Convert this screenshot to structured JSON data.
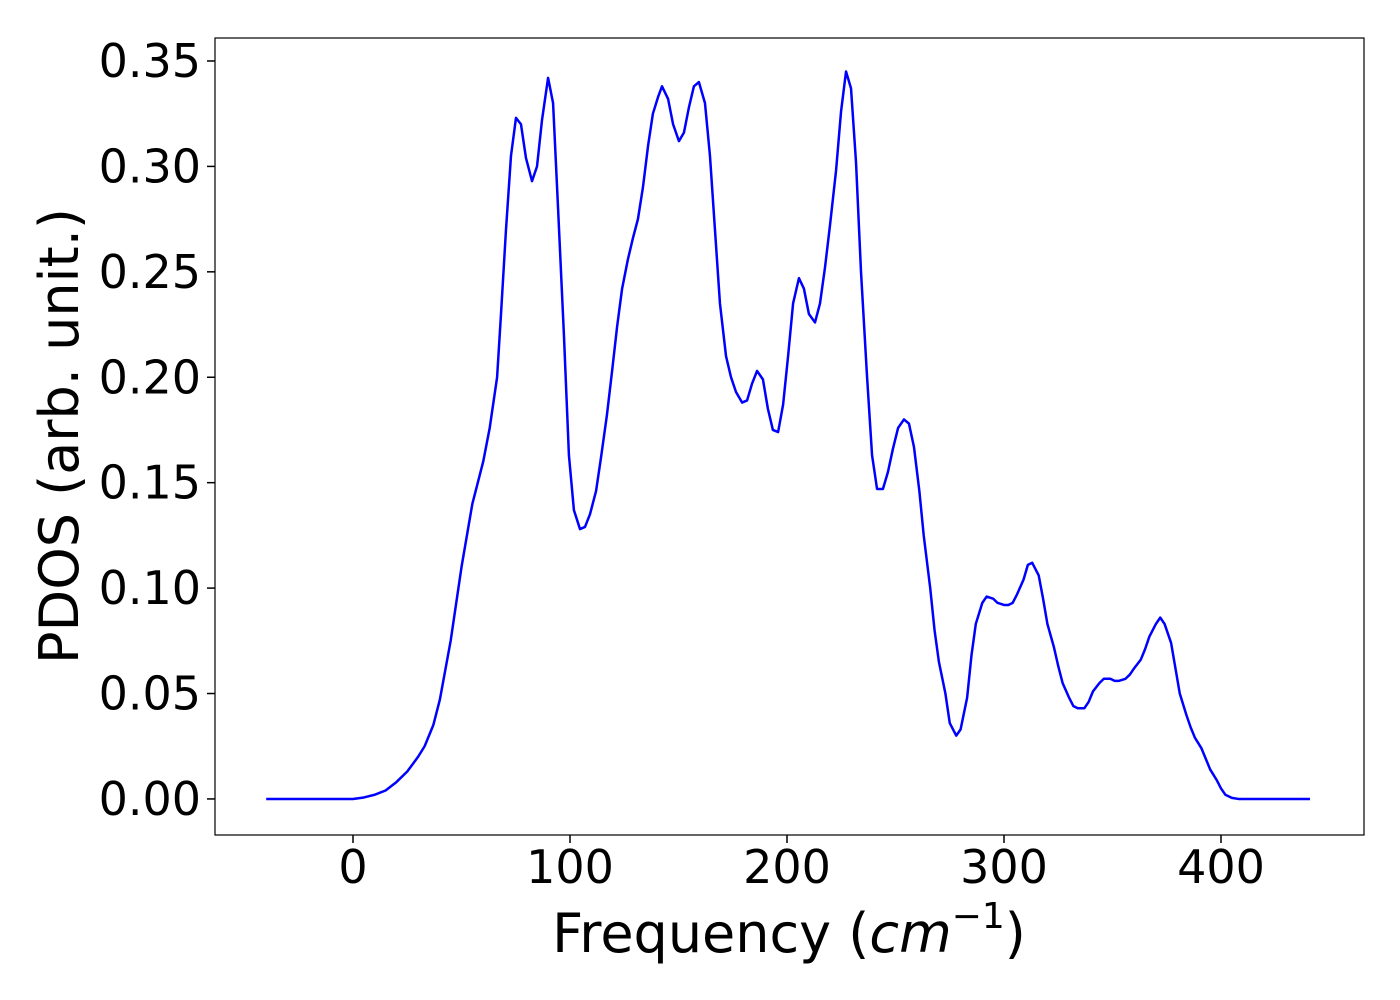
{
  "chart_data": {
    "type": "line",
    "xlabel": [
      "Frequency (",
      "cm",
      "−1",
      ")"
    ],
    "ylabel": "PDOS (arb. unit.)",
    "x": [
      -40,
      0,
      5,
      10,
      15,
      20,
      25,
      30,
      33,
      37,
      40,
      45,
      50,
      55,
      60,
      63,
      66.4,
      68.2,
      70.5,
      72.8,
      75.1,
      77.4,
      79.7,
      82.5,
      84.8,
      87.1,
      89.9,
      92.2,
      94.5,
      97.2,
      99.5,
      101.8,
      104.6,
      106.9,
      109.2,
      112,
      114.3,
      117,
      119.4,
      121.7,
      124,
      126.7,
      129,
      131.3,
      133.6,
      136,
      138.2,
      140.6,
      142.4,
      145.2,
      147.5,
      150.2,
      152.5,
      154.8,
      157.1,
      159.4,
      162.2,
      164.5,
      166.8,
      169.1,
      171.9,
      174.2,
      176.5,
      179.3,
      181.6,
      183.9,
      186.2,
      188.9,
      191.2,
      193.5,
      195.9,
      198.2,
      200.5,
      202.8,
      205.5,
      207.8,
      210.1,
      212.9,
      215.2,
      217.5,
      219.8,
      222.6,
      224.9,
      227.2,
      229.5,
      231.8,
      234.1,
      236.9,
      239.2,
      241.5,
      244.2,
      246.5,
      248.8,
      251.2,
      253.9,
      256.2,
      258.5,
      261,
      263,
      266,
      268,
      270,
      273,
      275,
      278,
      280,
      283,
      285,
      287,
      290,
      292,
      295,
      297,
      300,
      302,
      304,
      306,
      309,
      311,
      313,
      316,
      318,
      320,
      323,
      325,
      327,
      330,
      332,
      334,
      337,
      339,
      341,
      344,
      346,
      349,
      351,
      353,
      356,
      358,
      360,
      363,
      365,
      367,
      370,
      372,
      374,
      377,
      379,
      381,
      384,
      386,
      388,
      391,
      393,
      395,
      398,
      400,
      402,
      405,
      408,
      420,
      441
    ],
    "series": [
      {
        "name": "PDOS",
        "color": "#0000ff",
        "values": [
          0,
          0,
          0.0007,
          0.002,
          0.004,
          0.008,
          0.013,
          0.02,
          0.025,
          0.035,
          0.047,
          0.075,
          0.11,
          0.14,
          0.16,
          0.176,
          0.2,
          0.23,
          0.27,
          0.305,
          0.323,
          0.32,
          0.304,
          0.293,
          0.3,
          0.322,
          0.342,
          0.33,
          0.28,
          0.22,
          0.163,
          0.137,
          0.128,
          0.129,
          0.135,
          0.146,
          0.162,
          0.182,
          0.203,
          0.224,
          0.242,
          0.256,
          0.266,
          0.275,
          0.29,
          0.31,
          0.325,
          0.333,
          0.338,
          0.332,
          0.32,
          0.312,
          0.316,
          0.328,
          0.338,
          0.34,
          0.33,
          0.305,
          0.27,
          0.235,
          0.21,
          0.2,
          0.193,
          0.188,
          0.189,
          0.197,
          0.203,
          0.199,
          0.185,
          0.175,
          0.174,
          0.187,
          0.21,
          0.235,
          0.247,
          0.242,
          0.23,
          0.226,
          0.235,
          0.252,
          0.272,
          0.298,
          0.326,
          0.345,
          0.337,
          0.302,
          0.25,
          0.2,
          0.163,
          0.147,
          0.147,
          0.155,
          0.166,
          0.176,
          0.18,
          0.178,
          0.167,
          0.146,
          0.125,
          0.1,
          0.08,
          0.065,
          0.05,
          0.036,
          0.03,
          0.033,
          0.048,
          0.068,
          0.083,
          0.093,
          0.096,
          0.095,
          0.093,
          0.092,
          0.092,
          0.093,
          0.097,
          0.104,
          0.111,
          0.112,
          0.106,
          0.095,
          0.083,
          0.072,
          0.063,
          0.055,
          0.048,
          0.044,
          0.043,
          0.043,
          0.046,
          0.051,
          0.055,
          0.057,
          0.057,
          0.056,
          0.056,
          0.057,
          0.059,
          0.062,
          0.066,
          0.071,
          0.077,
          0.083,
          0.086,
          0.083,
          0.074,
          0.062,
          0.05,
          0.04,
          0.034,
          0.029,
          0.024,
          0.019,
          0.014,
          0.009,
          0.005,
          0.002,
          0.0005,
          0,
          0,
          0
        ]
      }
    ],
    "xlim": [
      -63.6,
      465.9
    ],
    "ylim": [
      -0.0171,
      0.3609
    ],
    "xticks": [
      0,
      100,
      200,
      300,
      400
    ],
    "yticks": [
      {
        "value": 0,
        "label": "0.00"
      },
      {
        "value": 0.05,
        "label": "0.05"
      },
      {
        "value": 0.1,
        "label": "0.10"
      },
      {
        "value": 0.15,
        "label": "0.15"
      },
      {
        "value": 0.2,
        "label": "0.20"
      },
      {
        "value": 0.25,
        "label": "0.25"
      },
      {
        "value": 0.3,
        "label": "0.30"
      },
      {
        "value": 0.35,
        "label": "0.35"
      }
    ],
    "grid": false
  }
}
